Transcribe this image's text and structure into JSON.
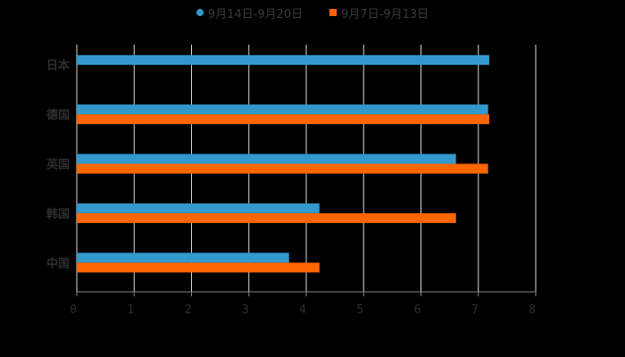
{
  "chart_data": {
    "type": "bar",
    "orientation": "horizontal",
    "title": "",
    "xlabel": "",
    "ylabel": "",
    "categories": [
      "日本",
      "德国",
      "英国",
      "韩国",
      "中国"
    ],
    "series": [
      {
        "name": "9月14日-9月20日",
        "color": "#3399cc",
        "values": [
          7.19,
          7.17,
          6.61,
          4.23,
          3.7
        ]
      },
      {
        "name": "9月7日-9月13日",
        "color": "#ff6600",
        "values": [
          null,
          7.19,
          7.17,
          6.61,
          4.23
        ]
      }
    ],
    "xlim": [
      0,
      8
    ],
    "xticks": [
      "0",
      "1",
      "2",
      "3",
      "4",
      "5",
      "6",
      "7",
      "8"
    ],
    "grid": true,
    "legend_position": "top"
  },
  "legend": {
    "items": [
      {
        "label": "9月14日-9月20日",
        "color": "#3399cc",
        "shape": "circle"
      },
      {
        "label": "9月7日-9月13日",
        "color": "#ff6600",
        "shape": "square"
      }
    ]
  }
}
